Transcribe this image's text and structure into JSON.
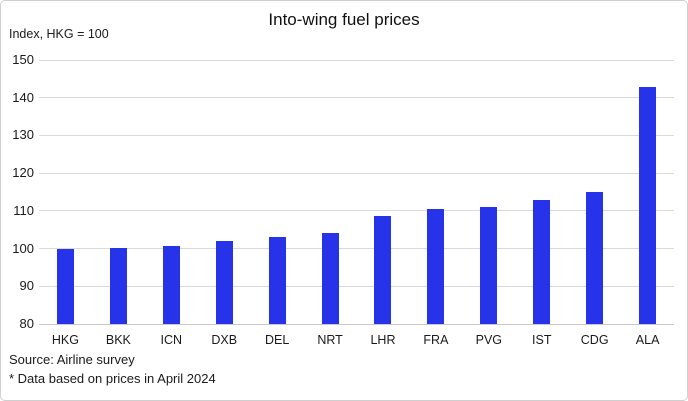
{
  "header": {
    "title": "Into-wing fuel prices",
    "unit_label": "Index, HKG = 100"
  },
  "chart_data": {
    "type": "bar",
    "title": "Into-wing fuel prices",
    "ylabel": "Index, HKG = 100",
    "xlabel": "",
    "categories": [
      "HKG",
      "BKK",
      "ICN",
      "DXB",
      "DEL",
      "NRT",
      "LHR",
      "FRA",
      "PVG",
      "IST",
      "CDG",
      "ALA"
    ],
    "values": [
      100,
      100.2,
      100.8,
      102,
      103,
      104.1,
      108.6,
      110.6,
      111,
      112.8,
      115,
      142.8
    ],
    "ylim": [
      80,
      150
    ],
    "yticks": [
      80,
      90,
      100,
      110,
      120,
      130,
      140,
      150
    ],
    "grid": true,
    "legend": "none",
    "bar_color": "#2733e8",
    "gridline_color": "#d9d9d9",
    "baseline_color": "#c9c9c9"
  },
  "footer": {
    "source": "Source: Airline survey",
    "note": "* Data based on prices in April 2024"
  }
}
